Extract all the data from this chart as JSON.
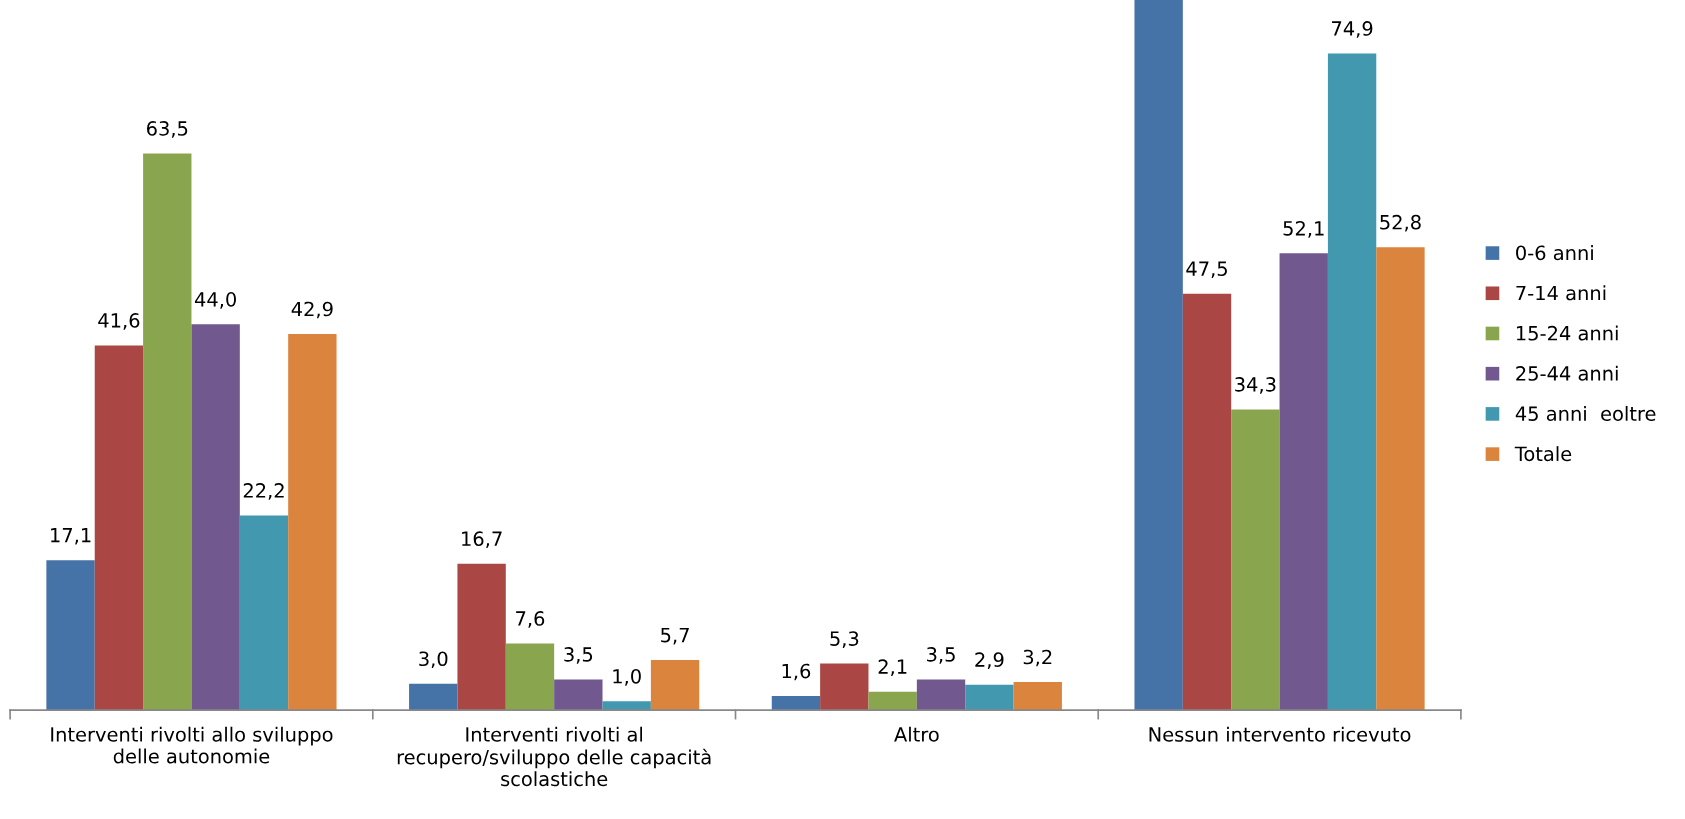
{
  "chart_data": {
    "type": "bar",
    "categories": [
      "Interventi rivolti allo sviluppo\ndelle autonomie",
      "Interventi rivolti al\nrecupero/sviluppo delle capacità\nscolastiche",
      "Altro",
      "Nessun intervento ricevuto"
    ],
    "series": [
      {
        "name": "0-6 anni",
        "color": "#4572a7",
        "values": [
          17.1,
          3.0,
          1.6,
          81
        ],
        "value_labels": [
          "17,1",
          "3,0",
          "1,6",
          null
        ]
      },
      {
        "name": "7-14 anni",
        "color": "#aa4643",
        "values": [
          41.6,
          16.7,
          5.3,
          47.5
        ],
        "value_labels": [
          "41,6",
          "16,7",
          "5,3",
          "47,5"
        ]
      },
      {
        "name": "15-24 anni",
        "color": "#89a54e",
        "values": [
          63.5,
          7.6,
          2.1,
          34.3
        ],
        "value_labels": [
          "63,5",
          "7,6",
          "2,1",
          "34,3"
        ]
      },
      {
        "name": "25-44 anni",
        "color": "#71588f",
        "values": [
          44.0,
          3.5,
          3.5,
          52.1
        ],
        "value_labels": [
          "44,0",
          "3,5",
          "3,5",
          "52,1"
        ]
      },
      {
        "name": "45 anni  eoltre",
        "color": "#4198af",
        "values": [
          22.2,
          1.0,
          2.9,
          74.9
        ],
        "value_labels": [
          "22,2",
          "1,0",
          "2,9",
          "74,9"
        ]
      },
      {
        "name": "Totale",
        "color": "#db843d",
        "values": [
          42.9,
          5.7,
          3.2,
          52.8
        ],
        "value_labels": [
          "42,9",
          "5,7",
          "3,2",
          "52,8"
        ]
      }
    ],
    "ylim": [
      0,
      81
    ],
    "tick_labels": "x",
    "grid": false,
    "legend": "right"
  }
}
